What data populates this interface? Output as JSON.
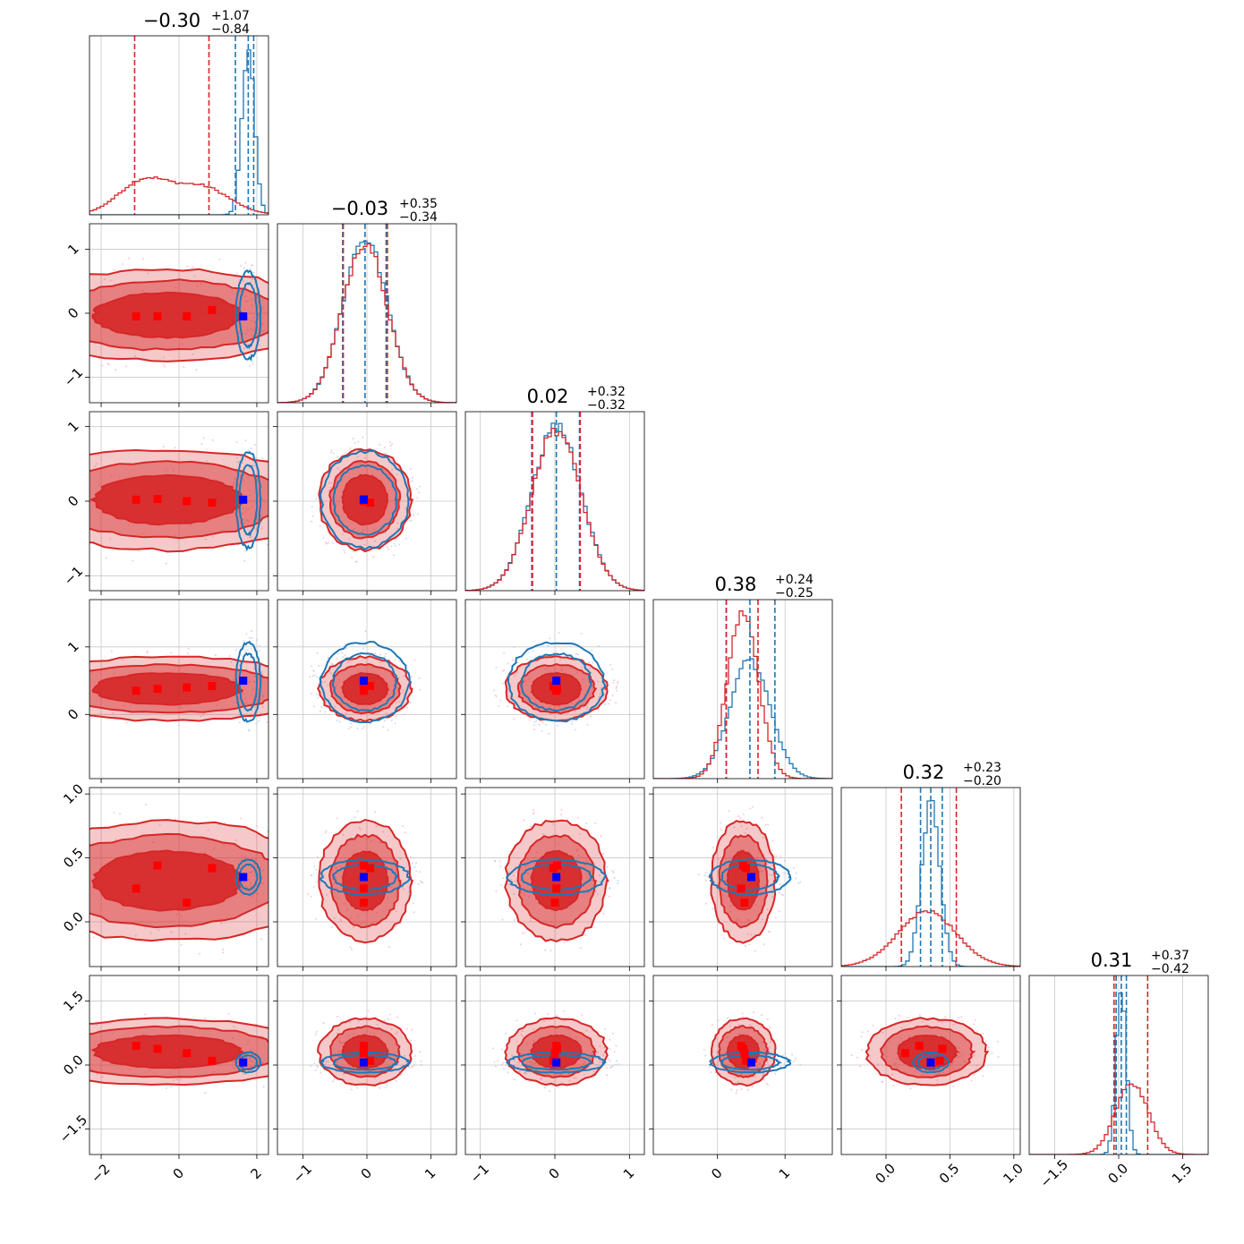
{
  "chart_data": {
    "type": "corner",
    "n_params": 6,
    "colors": {
      "red": "#d62728",
      "blue": "#1f77b4",
      "red_marker": "#ff0000",
      "blue_marker": "#0000ff",
      "grid": "#c8c8c8"
    },
    "grid": true,
    "titles": [
      {
        "value": "0.30",
        "sign": "−",
        "plus": "+1.07",
        "minus": "−0.84"
      },
      {
        "value": "0.03",
        "sign": "−",
        "plus": "+0.35",
        "minus": "−0.34"
      },
      {
        "value": "0.02",
        "sign": "",
        "plus": "+0.32",
        "minus": "−0.32"
      },
      {
        "value": "0.38",
        "sign": "",
        "plus": "+0.24",
        "minus": "−0.25"
      },
      {
        "value": "0.32",
        "sign": "",
        "plus": "+0.23",
        "minus": "−0.20"
      },
      {
        "value": "0.31",
        "sign": "",
        "plus": "+0.37",
        "minus": "−0.42"
      }
    ],
    "ranges": [
      [
        -2.3,
        2.3
      ],
      [
        -1.4,
        1.4
      ],
      [
        -1.2,
        1.2
      ],
      [
        -0.95,
        1.7
      ],
      [
        -0.35,
        1.05
      ],
      [
        -2.1,
        2.1
      ]
    ],
    "ticks": [
      {
        "values": [
          -2,
          0,
          2
        ],
        "labels": [
          "−2",
          "0",
          "2"
        ]
      },
      {
        "values": [
          -1,
          0,
          1
        ],
        "labels": [
          "−1",
          "0",
          "1"
        ]
      },
      {
        "values": [
          -1,
          0,
          1
        ],
        "labels": [
          "−1",
          "0",
          "1"
        ]
      },
      {
        "values": [
          0,
          1
        ],
        "labels": [
          "0",
          "1"
        ]
      },
      {
        "values": [
          0.0,
          0.5,
          1.0
        ],
        "labels": [
          "0.0",
          "0.5",
          "1.0"
        ]
      },
      {
        "values": [
          -1.5,
          0.0,
          1.5
        ],
        "labels": [
          "−1.5",
          "0.0",
          "1.5"
        ]
      }
    ],
    "red": {
      "mean": [
        -0.3,
        -0.03,
        0.02,
        0.38,
        0.32,
        0.31
      ],
      "sd": [
        1.05,
        0.35,
        0.33,
        0.23,
        0.23,
        0.38
      ],
      "quantiles": [
        [
          -1.14,
          0.77
        ],
        [
          -0.37,
          0.32
        ],
        [
          -0.3,
          0.34
        ],
        [
          0.13,
          0.6
        ],
        [
          0.12,
          0.55
        ],
        [
          -0.11,
          0.68
        ]
      ],
      "bimodal_x0": [
        -0.9,
        0.6
      ],
      "markers": {
        "x0": [
          -1.1,
          -0.55,
          0.2,
          0.85
        ],
        "x1": [
          -0.05,
          -0.05,
          -0.05,
          0.05
        ],
        "x2": [
          0.02,
          0.03,
          0.0,
          -0.02
        ],
        "x3": [
          0.35,
          0.38,
          0.4,
          0.42
        ],
        "x4": [
          0.26,
          0.44,
          0.15,
          0.42
        ],
        "x5": [
          0.45,
          0.38,
          0.28,
          0.1
        ]
      }
    },
    "blue": {
      "mean": [
        1.78,
        -0.03,
        0.02,
        0.48,
        0.35,
        0.06
      ],
      "sd": [
        0.16,
        0.35,
        0.33,
        0.3,
        0.07,
        0.12
      ],
      "quantiles": [
        [
          1.45,
          1.92
        ],
        [
          -0.38,
          0.3
        ],
        [
          -0.31,
          0.33
        ],
        [
          0.13,
          0.85
        ],
        [
          0.27,
          0.44
        ],
        [
          -0.06,
          0.18
        ]
      ],
      "markers": [
        1.65,
        -0.05,
        0.02,
        0.5,
        0.35,
        0.06
      ]
    }
  }
}
